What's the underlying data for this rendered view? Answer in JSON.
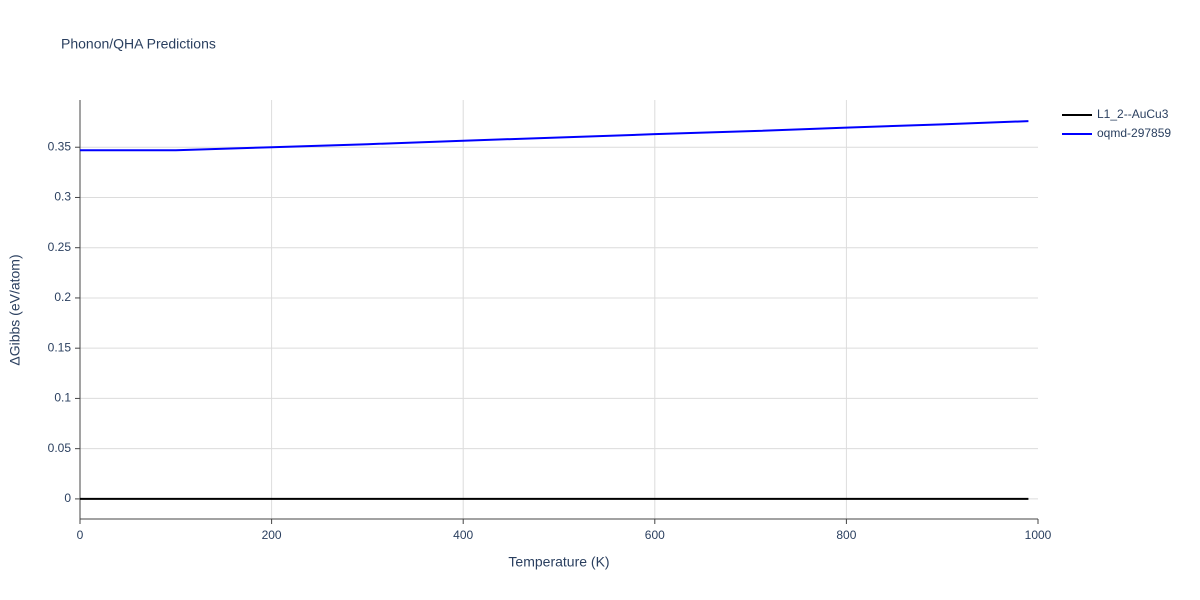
{
  "chart_data": {
    "type": "line",
    "title": "Phonon/QHA Predictions",
    "x_label": "Temperature (K)",
    "y_label": "ΔGibbs (eV/atom)",
    "x": [
      0,
      100,
      200,
      300,
      400,
      500,
      600,
      700,
      800,
      900,
      990
    ],
    "series": [
      {
        "name": "L1_2--AuCu3",
        "color": "#000000",
        "values": [
          0,
          0,
          0,
          0,
          0,
          0,
          0,
          0,
          0,
          0,
          0
        ]
      },
      {
        "name": "oqmd-297859",
        "color": "#0000ff",
        "values": [
          0.347,
          0.347,
          0.35,
          0.353,
          0.3565,
          0.3597,
          0.363,
          0.366,
          0.3695,
          0.3728,
          0.376
        ]
      }
    ],
    "xlim": [
      0,
      1000
    ],
    "xticks": [
      0,
      200,
      400,
      600,
      800,
      1000
    ],
    "ylim": [
      -0.02,
      0.397
    ],
    "yticks": [
      0,
      0.05,
      0.1,
      0.15,
      0.2,
      0.25,
      0.3,
      0.35
    ],
    "grid": true,
    "legend": "right"
  }
}
